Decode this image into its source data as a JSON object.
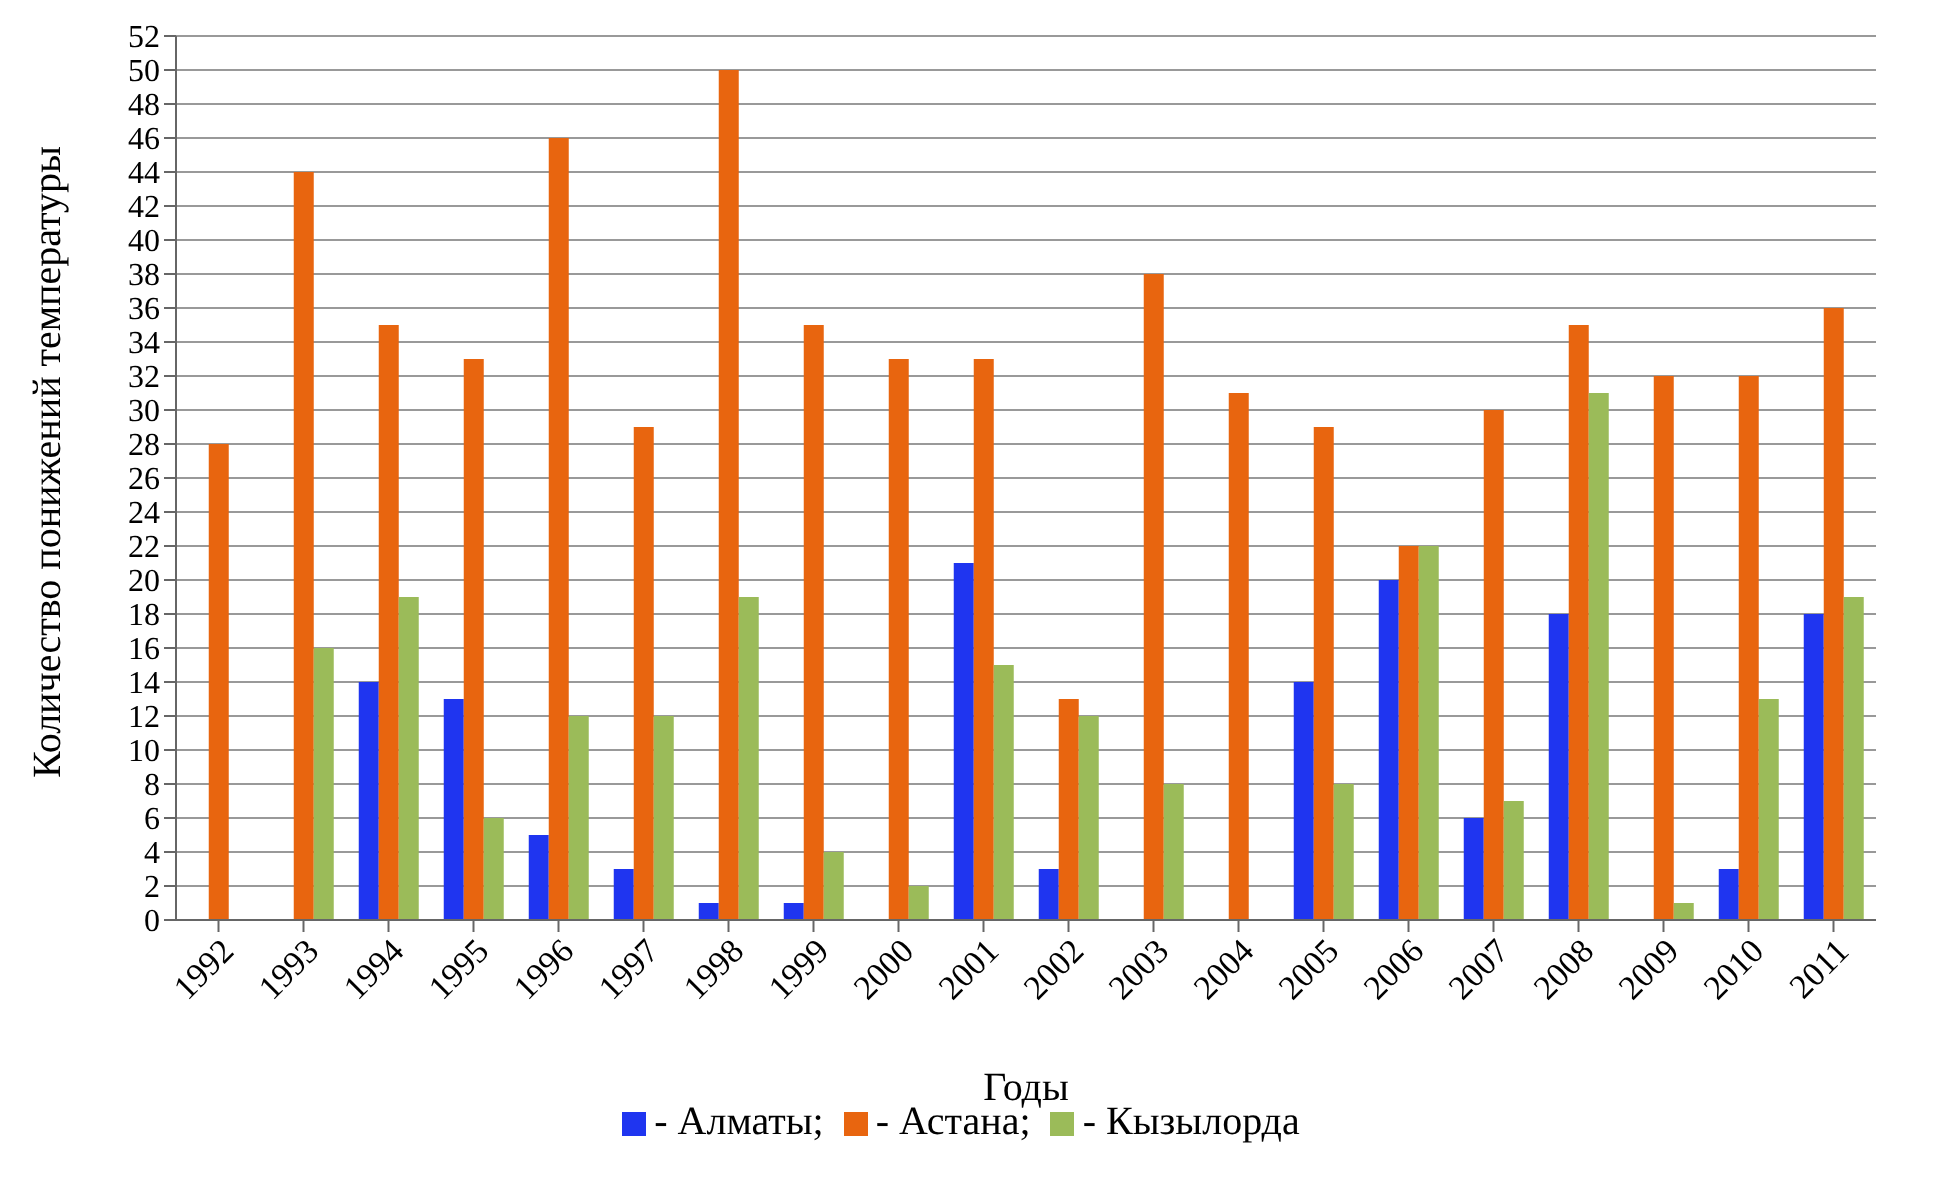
{
  "chart_data": {
    "type": "bar",
    "xlabel": "Годы",
    "ylabel": "Количество понижений температуры",
    "categories": [
      "1992",
      "1993",
      "1994",
      "1995",
      "1996",
      "1997",
      "1998",
      "1999",
      "2000",
      "2001",
      "2002",
      "2003",
      "2004",
      "2005",
      "2006",
      "2007",
      "2008",
      "2009",
      "2010",
      "2011"
    ],
    "series": [
      {
        "name": "- Алматы;",
        "color": "#1f35f0",
        "values": [
          0,
          0,
          14,
          13,
          5,
          3,
          1,
          1,
          0,
          21,
          3,
          0,
          0,
          14,
          20,
          6,
          18,
          0,
          3,
          18
        ]
      },
      {
        "name": "- Астана;",
        "color": "#e8650f",
        "values": [
          28,
          44,
          35,
          33,
          46,
          29,
          50,
          35,
          33,
          33,
          13,
          38,
          31,
          29,
          22,
          30,
          35,
          32,
          32,
          36
        ]
      },
      {
        "name": "- Кызылорда",
        "color": "#9bbb59",
        "values": [
          0,
          16,
          19,
          6,
          12,
          12,
          19,
          4,
          2,
          15,
          12,
          8,
          0,
          8,
          22,
          7,
          31,
          1,
          13,
          19
        ]
      }
    ],
    "ylim": [
      0,
      52
    ],
    "yticks": [
      0,
      2,
      4,
      6,
      8,
      10,
      12,
      14,
      16,
      18,
      20,
      22,
      24,
      26,
      28,
      30,
      32,
      34,
      36,
      38,
      40,
      42,
      44,
      46,
      48,
      50,
      52
    ],
    "grid": "y",
    "legend": "bottom"
  }
}
